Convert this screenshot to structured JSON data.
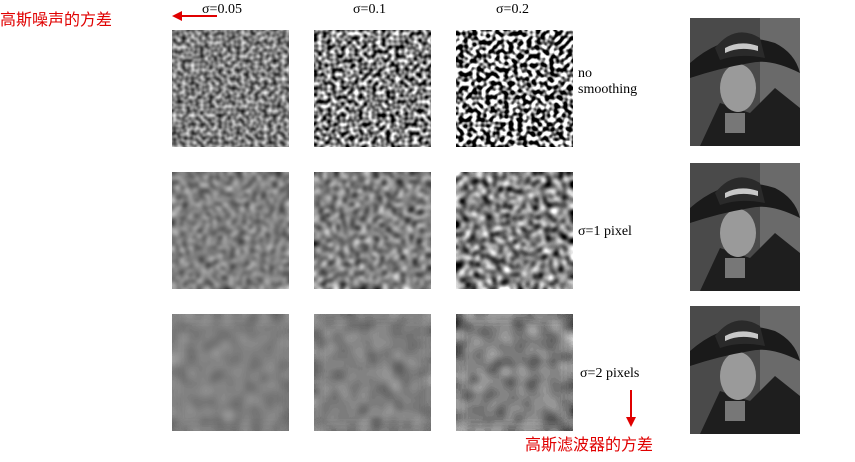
{
  "column_labels": [
    "σ=0.05",
    "σ=0.1",
    "σ=0.2"
  ],
  "row_labels": [
    "no smoothing",
    "σ=1 pixel",
    "σ=2 pixels"
  ],
  "annotations": {
    "noise_variance": "高斯噪声的方差",
    "filter_variance": "高斯滤波器的方差"
  }
}
